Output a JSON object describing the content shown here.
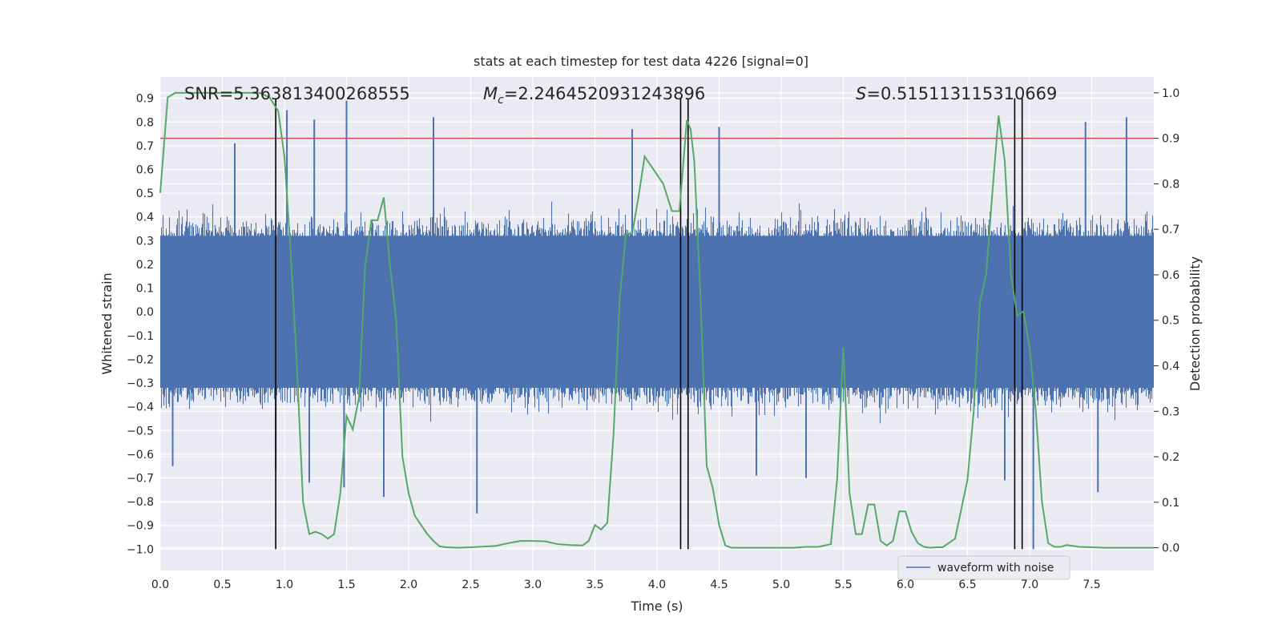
{
  "chart_data": {
    "type": "line",
    "title": "stats at each timestep for test data 4226 [signal=0]",
    "xlabel": "Time (s)",
    "ylabel_left": "Whitened strain",
    "ylabel_right": "Detection probability",
    "xlim": [
      0,
      8
    ],
    "ylim_left": [
      -1.09,
      0.99
    ],
    "ylim_right": [
      -0.05,
      1.035
    ],
    "x_ticks": [
      0.0,
      0.5,
      1.0,
      1.5,
      2.0,
      2.5,
      3.0,
      3.5,
      4.0,
      4.5,
      5.0,
      5.5,
      6.0,
      6.5,
      7.0,
      7.5
    ],
    "x_tick_labels": [
      "0.0",
      "0.5",
      "1.0",
      "1.5",
      "2.0",
      "2.5",
      "3.0",
      "3.5",
      "4.0",
      "4.5",
      "5.0",
      "5.5",
      "6.0",
      "6.5",
      "7.0",
      "7.5"
    ],
    "y_left_ticks": [
      0.9,
      0.8,
      0.7,
      0.6,
      0.5,
      0.4,
      0.3,
      0.2,
      0.1,
      0.0,
      -0.1,
      -0.2,
      -0.3,
      -0.4,
      -0.5,
      -0.6,
      -0.7,
      -0.8,
      -0.9,
      -1.0
    ],
    "y_left_tick_labels": [
      "0.9",
      "0.8",
      "0.7",
      "0.6",
      "0.5",
      "0.4",
      "0.3",
      "0.2",
      "0.1",
      "0.0",
      "−0.1",
      "−0.2",
      "−0.3",
      "−0.4",
      "−0.5",
      "−0.6",
      "−0.7",
      "−0.8",
      "−0.9",
      "−1.0"
    ],
    "y_right_ticks": [
      1.0,
      0.9,
      0.8,
      0.7,
      0.6,
      0.5,
      0.4,
      0.3,
      0.2,
      0.1,
      0.0
    ],
    "y_right_tick_labels": [
      "1.0",
      "0.9",
      "0.8",
      "0.7",
      "0.6",
      "0.5",
      "0.4",
      "0.3",
      "0.2",
      "0.1",
      "0.0"
    ],
    "annotations": {
      "snr": "SNR=5.363813400268555",
      "mc_symbol": "M",
      "mc_sub": "c",
      "mc_value": "=2.2464520931243896",
      "s_symbol": "S",
      "s_value": "=0.515113115310669"
    },
    "threshold": {
      "value": 0.9,
      "axis": "right",
      "color": "#c44e52"
    },
    "event_markers": {
      "x": [
        0.93,
        4.19,
        4.25,
        6.88,
        6.94
      ],
      "y_range": [
        -1.0,
        0.9
      ],
      "color": "#000000"
    },
    "series": [
      {
        "name": "waveform with noise",
        "axis": "left",
        "kind": "noise-waveform",
        "color": "#4c72b0",
        "core_range": [
          -0.32,
          0.32
        ],
        "typical_envelope": [
          -0.5,
          0.5
        ],
        "spikes": [
          {
            "x": 1.02,
            "y": 0.85
          },
          {
            "x": 1.24,
            "y": 0.81
          },
          {
            "x": 1.5,
            "y": 0.89
          },
          {
            "x": 2.2,
            "y": 0.82
          },
          {
            "x": 3.8,
            "y": 0.77
          },
          {
            "x": 4.5,
            "y": 0.78
          },
          {
            "x": 7.45,
            "y": 0.8
          },
          {
            "x": 7.78,
            "y": 0.82
          },
          {
            "x": 0.6,
            "y": 0.71
          },
          {
            "x": 0.93,
            "y": -0.67
          },
          {
            "x": 1.2,
            "y": -0.72
          },
          {
            "x": 1.48,
            "y": -0.74
          },
          {
            "x": 1.8,
            "y": -0.78
          },
          {
            "x": 2.55,
            "y": -0.85
          },
          {
            "x": 6.8,
            "y": -0.71
          },
          {
            "x": 7.03,
            "y": -1.0
          },
          {
            "x": 7.55,
            "y": -0.76
          },
          {
            "x": 0.1,
            "y": -0.65
          },
          {
            "x": 4.8,
            "y": -0.69
          },
          {
            "x": 5.2,
            "y": -0.7
          }
        ],
        "seed": 4226
      },
      {
        "name": "detection probability",
        "axis": "right",
        "color": "#55a868",
        "x": [
          0.0,
          0.06,
          0.12,
          0.2,
          0.4,
          0.6,
          0.8,
          0.88,
          0.95,
          1.0,
          1.05,
          1.1,
          1.15,
          1.2,
          1.25,
          1.3,
          1.35,
          1.4,
          1.45,
          1.5,
          1.55,
          1.6,
          1.65,
          1.7,
          1.75,
          1.8,
          1.85,
          1.9,
          1.95,
          2.0,
          2.05,
          2.1,
          2.15,
          2.2,
          2.25,
          2.3,
          2.4,
          2.5,
          2.7,
          2.8,
          2.9,
          3.0,
          3.1,
          3.2,
          3.3,
          3.4,
          3.45,
          3.5,
          3.55,
          3.6,
          3.65,
          3.7,
          3.75,
          3.8,
          3.85,
          3.9,
          3.95,
          4.05,
          4.12,
          4.18,
          4.24,
          4.27,
          4.3,
          4.35,
          4.4,
          4.45,
          4.5,
          4.55,
          4.6,
          4.7,
          4.8,
          4.9,
          5.0,
          5.1,
          5.2,
          5.3,
          5.4,
          5.45,
          5.5,
          5.55,
          5.6,
          5.65,
          5.7,
          5.75,
          5.8,
          5.85,
          5.9,
          5.95,
          6.0,
          6.05,
          6.1,
          6.15,
          6.2,
          6.25,
          6.3,
          6.4,
          6.5,
          6.55,
          6.6,
          6.65,
          6.7,
          6.75,
          6.8,
          6.85,
          6.9,
          6.95,
          7.0,
          7.05,
          7.1,
          7.15,
          7.2,
          7.25,
          7.3,
          7.35,
          7.4,
          7.5,
          7.6,
          7.7,
          7.8,
          7.9,
          8.0
        ],
        "y": [
          0.78,
          0.99,
          1.0,
          1.0,
          1.0,
          1.0,
          1.0,
          0.99,
          0.96,
          0.86,
          0.65,
          0.4,
          0.1,
          0.03,
          0.035,
          0.03,
          0.02,
          0.03,
          0.12,
          0.29,
          0.26,
          0.33,
          0.62,
          0.72,
          0.72,
          0.77,
          0.62,
          0.5,
          0.2,
          0.12,
          0.07,
          0.05,
          0.03,
          0.015,
          0.003,
          0.001,
          0.0,
          0.001,
          0.004,
          0.01,
          0.015,
          0.015,
          0.014,
          0.008,
          0.006,
          0.005,
          0.015,
          0.05,
          0.04,
          0.055,
          0.25,
          0.55,
          0.69,
          0.69,
          0.77,
          0.86,
          0.84,
          0.8,
          0.74,
          0.74,
          0.94,
          0.92,
          0.85,
          0.55,
          0.18,
          0.13,
          0.05,
          0.005,
          0.0,
          0.0,
          0.0,
          0.0,
          0.0,
          0.0,
          0.002,
          0.002,
          0.008,
          0.15,
          0.44,
          0.12,
          0.03,
          0.03,
          0.095,
          0.095,
          0.015,
          0.005,
          0.015,
          0.08,
          0.08,
          0.035,
          0.01,
          0.002,
          0.0,
          0.001,
          0.001,
          0.02,
          0.15,
          0.3,
          0.54,
          0.6,
          0.78,
          0.95,
          0.85,
          0.6,
          0.51,
          0.52,
          0.44,
          0.3,
          0.1,
          0.01,
          0.002,
          0.002,
          0.006,
          0.004,
          0.002,
          0.001,
          0.0,
          0.0,
          0.0,
          0.0,
          0.0
        ]
      }
    ],
    "legend": {
      "location": "lower-right",
      "entries": [
        "waveform with noise"
      ]
    },
    "grid": true
  }
}
